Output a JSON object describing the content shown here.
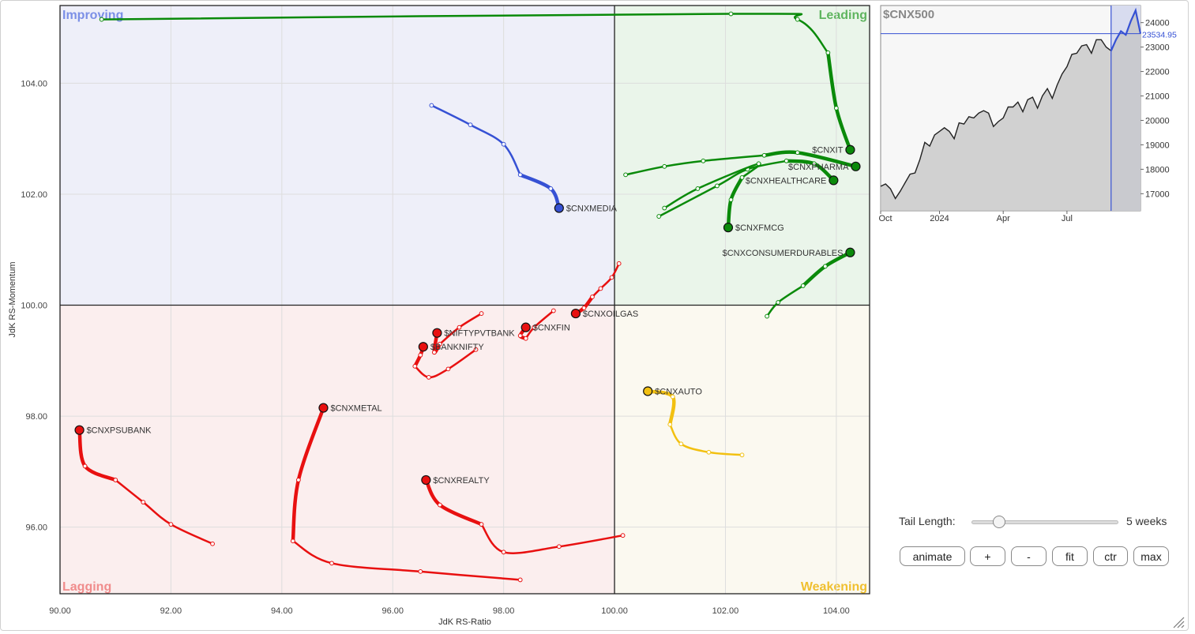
{
  "chart_data": [
    {
      "type": "scatter",
      "xlabel": "JdK RS-Ratio",
      "ylabel": "JdK RS-Momentum",
      "xlim": [
        90,
        104.6
      ],
      "ylim": [
        94.8,
        105.4
      ],
      "x_ticks": [
        90,
        92,
        94,
        96,
        98,
        100,
        102,
        104
      ],
      "y_ticks": [
        96,
        98,
        100,
        102,
        104
      ],
      "tick_format_decimals": 2,
      "center": [
        100,
        100
      ],
      "quadrants": [
        {
          "name": "Improving",
          "color": "#7b8fe6",
          "fill": "#eeeff9",
          "position": "top-left"
        },
        {
          "name": "Leading",
          "color": "#5fb55f",
          "fill": "#eaf5ea",
          "position": "top-right"
        },
        {
          "name": "Lagging",
          "color": "#f08c8c",
          "fill": "#fbeeee",
          "position": "bottom-left"
        },
        {
          "name": "Weakening",
          "color": "#f0c030",
          "fill": "#fbf9f0",
          "position": "bottom-right"
        }
      ],
      "series": [
        {
          "name": "$CNXIT",
          "color": "#0a8a0a",
          "label_side": "left",
          "points": [
            [
              90.75,
              105.15
            ],
            [
              102.1,
              105.25
            ],
            [
              103.3,
              105.15
            ],
            [
              103.85,
              104.55
            ],
            [
              104.0,
              103.55
            ],
            [
              104.25,
              102.8
            ]
          ]
        },
        {
          "name": "$CNXPHARMA",
          "color": "#0a8a0a",
          "label_side": "left",
          "points": [
            [
              100.2,
              102.35
            ],
            [
              100.9,
              102.5
            ],
            [
              101.6,
              102.6
            ],
            [
              102.7,
              102.7
            ],
            [
              103.3,
              102.75
            ],
            [
              104.35,
              102.5
            ]
          ]
        },
        {
          "name": "$CNXHEALTHCARE",
          "color": "#0a8a0a",
          "label_side": "left",
          "points": [
            [
              100.8,
              101.6
            ],
            [
              101.85,
              102.15
            ],
            [
              102.4,
              102.45
            ],
            [
              103.1,
              102.6
            ],
            [
              103.6,
              102.55
            ],
            [
              103.95,
              102.25
            ]
          ]
        },
        {
          "name": "$CNXFMCG",
          "color": "#0a8a0a",
          "label_side": "right",
          "points": [
            [
              100.9,
              101.75
            ],
            [
              101.5,
              102.1
            ],
            [
              102.6,
              102.55
            ],
            [
              102.3,
              102.3
            ],
            [
              102.1,
              101.9
            ],
            [
              102.05,
              101.4
            ]
          ]
        },
        {
          "name": "$CNXCONSUMERDURABLES",
          "color": "#0a8a0a",
          "label_side": "left",
          "points": [
            [
              102.75,
              99.8
            ],
            [
              102.95,
              100.05
            ],
            [
              103.4,
              100.35
            ],
            [
              103.8,
              100.7
            ],
            [
              104.25,
              100.95
            ]
          ]
        },
        {
          "name": "$CNXMEDIA",
          "color": "#3651d4",
          "label_side": "right",
          "points": [
            [
              96.7,
              103.6
            ],
            [
              97.4,
              103.25
            ],
            [
              98.0,
              102.9
            ],
            [
              98.3,
              102.35
            ],
            [
              98.85,
              102.1
            ],
            [
              99.0,
              101.75
            ]
          ]
        },
        {
          "name": "$CNXOILGAS",
          "color": "#e81010",
          "label_side": "right",
          "points": [
            [
              100.08,
              100.75
            ],
            [
              99.95,
              100.5
            ],
            [
              99.75,
              100.3
            ],
            [
              99.6,
              100.15
            ],
            [
              99.45,
              99.95
            ],
            [
              99.3,
              99.85
            ]
          ]
        },
        {
          "name": "$CNXFIN",
          "color": "#e81010",
          "label_side": "right",
          "points": [
            [
              98.9,
              99.9
            ],
            [
              98.55,
              99.6
            ],
            [
              98.4,
              99.4
            ],
            [
              98.3,
              99.45
            ],
            [
              98.4,
              99.6
            ]
          ]
        },
        {
          "name": "$NIFTYPVTBANK",
          "color": "#e81010",
          "label_side": "right",
          "points": [
            [
              97.6,
              99.85
            ],
            [
              97.2,
              99.6
            ],
            [
              96.85,
              99.3
            ],
            [
              96.75,
              99.15
            ],
            [
              96.8,
              99.5
            ]
          ]
        },
        {
          "name": "$BANKNIFTY",
          "color": "#e81010",
          "label_side": "right",
          "points": [
            [
              97.5,
              99.2
            ],
            [
              97.0,
              98.85
            ],
            [
              96.65,
              98.7
            ],
            [
              96.4,
              98.9
            ],
            [
              96.5,
              99.1
            ],
            [
              96.55,
              99.25
            ]
          ]
        },
        {
          "name": "$CNXMETAL",
          "color": "#e81010",
          "label_side": "right",
          "points": [
            [
              98.3,
              95.05
            ],
            [
              96.5,
              95.2
            ],
            [
              94.9,
              95.35
            ],
            [
              94.2,
              95.75
            ],
            [
              94.3,
              96.85
            ],
            [
              94.75,
              98.15
            ]
          ]
        },
        {
          "name": "$CNXPSUBANK",
          "color": "#e81010",
          "label_side": "right",
          "points": [
            [
              92.75,
              95.7
            ],
            [
              92.0,
              96.05
            ],
            [
              91.5,
              96.45
            ],
            [
              91.0,
              96.85
            ],
            [
              90.45,
              97.1
            ],
            [
              90.35,
              97.75
            ]
          ]
        },
        {
          "name": "$CNXREALTY",
          "color": "#e81010",
          "label_side": "right",
          "points": [
            [
              100.15,
              95.85
            ],
            [
              99.0,
              95.65
            ],
            [
              98.0,
              95.55
            ],
            [
              97.6,
              96.05
            ],
            [
              96.85,
              96.4
            ],
            [
              96.6,
              96.85
            ]
          ]
        },
        {
          "name": "$CNXAUTO",
          "color": "#f2c010",
          "label_side": "right",
          "points": [
            [
              102.3,
              97.3
            ],
            [
              101.7,
              97.35
            ],
            [
              101.2,
              97.5
            ],
            [
              101.0,
              97.85
            ],
            [
              101.05,
              98.35
            ],
            [
              100.6,
              98.45
            ]
          ]
        }
      ]
    },
    {
      "type": "area",
      "title": "$CNX500",
      "last_value_label": "23534.95",
      "y_ticks": [
        17000,
        18000,
        19000,
        20000,
        21000,
        22000,
        23000,
        24000
      ],
      "x_tick_labels": [
        "Oct",
        "2024",
        "Apr",
        "Jul"
      ],
      "x_tick_positions": [
        0,
        12,
        25,
        38
      ],
      "ylim": [
        16300,
        24700
      ],
      "xlim": [
        0,
        53
      ],
      "highlight_start": 47,
      "values": [
        17300,
        17400,
        17200,
        16800,
        17100,
        17450,
        17800,
        17850,
        18400,
        19100,
        18950,
        19400,
        19550,
        19700,
        19550,
        19250,
        19900,
        19850,
        20150,
        20100,
        20300,
        20400,
        20300,
        19750,
        19950,
        20100,
        20550,
        20550,
        20750,
        20350,
        20850,
        20950,
        20500,
        21000,
        21300,
        20900,
        21450,
        21900,
        22200,
        22700,
        22750,
        23050,
        23100,
        22750,
        23300,
        23300,
        23000,
        22850,
        23300,
        23650,
        23500,
        24050,
        24500,
        23550
      ]
    }
  ],
  "controls": {
    "tail_length_label": "Tail Length:",
    "tail_length_value": "5 weeks",
    "tail_length_fraction": 0.16,
    "buttons": {
      "animate": "animate",
      "plus": "+",
      "minus": "-",
      "fit": "fit",
      "ctr": "ctr",
      "max": "max"
    }
  }
}
